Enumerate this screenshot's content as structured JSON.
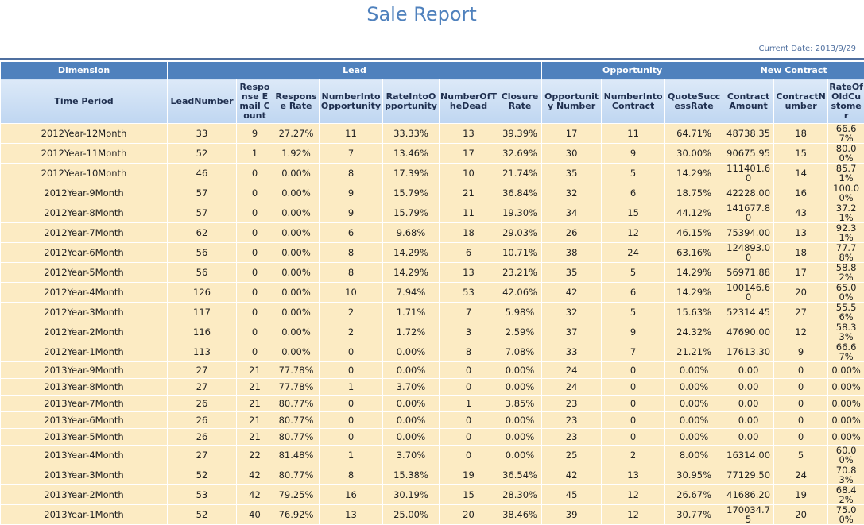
{
  "header": {
    "title": "Sale Report",
    "current_date": "Current Date: 2013/9/29"
  },
  "table": {
    "groups": [
      {
        "label": "Dimension",
        "span": 1
      },
      {
        "label": "Lead",
        "span": 7
      },
      {
        "label": "Opportunity",
        "span": 3
      },
      {
        "label": "New Contract",
        "span": 3
      }
    ],
    "columns": [
      "Time Period",
      "LeadNumber",
      "Response Email Count",
      "Response Rate",
      "NumberIntoOpportunity",
      "RateIntoOpportunity",
      "NumberOfTheDead",
      "ClosureRate",
      "Opportunity Number",
      "NumberIntoContract",
      "QuoteSuccessRate",
      "ContractAmount",
      "ContractNumber",
      "RateOfOldCustomer"
    ],
    "rows": [
      [
        "2012Year-12Month",
        "33",
        "9",
        "27.27%",
        "11",
        "33.33%",
        "13",
        "39.39%",
        "17",
        "11",
        "64.71%",
        "48738.35",
        "18",
        "66.67%"
      ],
      [
        "2012Year-11Month",
        "52",
        "1",
        "1.92%",
        "7",
        "13.46%",
        "17",
        "32.69%",
        "30",
        "9",
        "30.00%",
        "90675.95",
        "15",
        "80.00%"
      ],
      [
        "2012Year-10Month",
        "46",
        "0",
        "0.00%",
        "8",
        "17.39%",
        "10",
        "21.74%",
        "35",
        "5",
        "14.29%",
        "111401.60",
        "14",
        "85.71%"
      ],
      [
        "2012Year-9Month",
        "57",
        "0",
        "0.00%",
        "9",
        "15.79%",
        "21",
        "36.84%",
        "32",
        "6",
        "18.75%",
        "42228.00",
        "16",
        "100.00%"
      ],
      [
        "2012Year-8Month",
        "57",
        "0",
        "0.00%",
        "9",
        "15.79%",
        "11",
        "19.30%",
        "34",
        "15",
        "44.12%",
        "141677.80",
        "43",
        "37.21%"
      ],
      [
        "2012Year-7Month",
        "62",
        "0",
        "0.00%",
        "6",
        "9.68%",
        "18",
        "29.03%",
        "26",
        "12",
        "46.15%",
        "75394.00",
        "13",
        "92.31%"
      ],
      [
        "2012Year-6Month",
        "56",
        "0",
        "0.00%",
        "8",
        "14.29%",
        "6",
        "10.71%",
        "38",
        "24",
        "63.16%",
        "124893.00",
        "18",
        "77.78%"
      ],
      [
        "2012Year-5Month",
        "56",
        "0",
        "0.00%",
        "8",
        "14.29%",
        "13",
        "23.21%",
        "35",
        "5",
        "14.29%",
        "56971.88",
        "17",
        "58.82%"
      ],
      [
        "2012Year-4Month",
        "126",
        "0",
        "0.00%",
        "10",
        "7.94%",
        "53",
        "42.06%",
        "42",
        "6",
        "14.29%",
        "100146.60",
        "20",
        "65.00%"
      ],
      [
        "2012Year-3Month",
        "117",
        "0",
        "0.00%",
        "2",
        "1.71%",
        "7",
        "5.98%",
        "32",
        "5",
        "15.63%",
        "52314.45",
        "27",
        "55.56%"
      ],
      [
        "2012Year-2Month",
        "116",
        "0",
        "0.00%",
        "2",
        "1.72%",
        "3",
        "2.59%",
        "37",
        "9",
        "24.32%",
        "47690.00",
        "12",
        "58.33%"
      ],
      [
        "2012Year-1Month",
        "113",
        "0",
        "0.00%",
        "0",
        "0.00%",
        "8",
        "7.08%",
        "33",
        "7",
        "21.21%",
        "17613.30",
        "9",
        "66.67%"
      ],
      [
        "2013Year-9Month",
        "27",
        "21",
        "77.78%",
        "0",
        "0.00%",
        "0",
        "0.00%",
        "24",
        "0",
        "0.00%",
        "0.00",
        "0",
        "0.00%"
      ],
      [
        "2013Year-8Month",
        "27",
        "21",
        "77.78%",
        "1",
        "3.70%",
        "0",
        "0.00%",
        "24",
        "0",
        "0.00%",
        "0.00",
        "0",
        "0.00%"
      ],
      [
        "2013Year-7Month",
        "26",
        "21",
        "80.77%",
        "0",
        "0.00%",
        "1",
        "3.85%",
        "23",
        "0",
        "0.00%",
        "0.00",
        "0",
        "0.00%"
      ],
      [
        "2013Year-6Month",
        "26",
        "21",
        "80.77%",
        "0",
        "0.00%",
        "0",
        "0.00%",
        "23",
        "0",
        "0.00%",
        "0.00",
        "0",
        "0.00%"
      ],
      [
        "2013Year-5Month",
        "26",
        "21",
        "80.77%",
        "0",
        "0.00%",
        "0",
        "0.00%",
        "23",
        "0",
        "0.00%",
        "0.00",
        "0",
        "0.00%"
      ],
      [
        "2013Year-4Month",
        "27",
        "22",
        "81.48%",
        "1",
        "3.70%",
        "0",
        "0.00%",
        "25",
        "2",
        "8.00%",
        "16314.00",
        "5",
        "60.00%"
      ],
      [
        "2013Year-3Month",
        "52",
        "42",
        "80.77%",
        "8",
        "15.38%",
        "19",
        "36.54%",
        "42",
        "13",
        "30.95%",
        "77129.50",
        "24",
        "70.83%"
      ],
      [
        "2013Year-2Month",
        "53",
        "42",
        "79.25%",
        "16",
        "30.19%",
        "15",
        "28.30%",
        "45",
        "12",
        "26.67%",
        "41686.20",
        "19",
        "68.42%"
      ],
      [
        "2013Year-1Month",
        "52",
        "40",
        "76.92%",
        "13",
        "25.00%",
        "20",
        "38.46%",
        "39",
        "12",
        "30.77%",
        "170034.75",
        "20",
        "75.00%"
      ]
    ]
  }
}
